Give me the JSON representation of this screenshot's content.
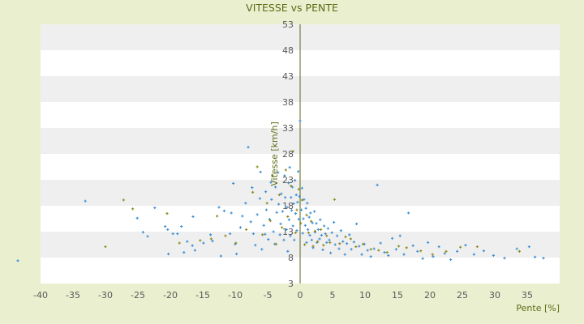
{
  "chart_data": {
    "type": "scatter",
    "title": "VITESSE vs PENTE",
    "xlabel": "Pente [%]",
    "ylabel": "Vitesse [km/h]",
    "xlim": [
      -40,
      40
    ],
    "ylim": [
      3,
      53
    ],
    "xticks": [
      "-40",
      "-35",
      "-30",
      "-25",
      "-20",
      "-15",
      "-10",
      "-5",
      "0",
      "5",
      "10",
      "15",
      "20",
      "25",
      "30",
      "35"
    ],
    "yticks": [
      "3",
      "8",
      "13",
      "18",
      "23",
      "28",
      "33",
      "38",
      "43",
      "48",
      "53"
    ],
    "grid": "horizontal alternating bands",
    "legend": "none",
    "colors": {
      "background": "#eaf0cf",
      "band_light": "#ffffff",
      "band_dark": "#efefef",
      "axis": "#5c6a14",
      "series_a": "#3d8fd4",
      "series_b": "#8c8a1e"
    },
    "series": [
      {
        "color_key": "series_a",
        "points": [
          [
            -43.5,
            7.4
          ],
          [
            -33.1,
            18.9
          ],
          [
            -25.1,
            15.6
          ],
          [
            -24.2,
            12.9
          ],
          [
            -23.5,
            12.1
          ],
          [
            -22.4,
            17.6
          ],
          [
            -20.8,
            14
          ],
          [
            -20.4,
            13.4
          ],
          [
            -20.3,
            8.7
          ],
          [
            -19.6,
            12.6
          ],
          [
            -18.9,
            12.6
          ],
          [
            -18.3,
            14
          ],
          [
            -17.9,
            9
          ],
          [
            -17.4,
            11.1
          ],
          [
            -16.6,
            10.3
          ],
          [
            -16.5,
            15.9
          ],
          [
            -16.2,
            9.4
          ],
          [
            -14.9,
            10.8
          ],
          [
            -13.8,
            12.4
          ],
          [
            -13.5,
            11.2
          ],
          [
            -12.5,
            17.7
          ],
          [
            -12.2,
            8.3
          ],
          [
            -11.7,
            17
          ],
          [
            -10.8,
            12.6
          ],
          [
            -10.6,
            16.6
          ],
          [
            -10.3,
            22.3
          ],
          [
            -10,
            10.6
          ],
          [
            -9.8,
            8.7
          ],
          [
            -9.2,
            13.8
          ],
          [
            -8.9,
            16
          ],
          [
            -8.4,
            18.5
          ],
          [
            -8,
            29.3
          ],
          [
            -7.6,
            14.9
          ],
          [
            -7.4,
            21.5
          ],
          [
            -7.2,
            12.6
          ],
          [
            -6.9,
            10.4
          ],
          [
            -6.6,
            16.3
          ],
          [
            -6.2,
            19.4
          ],
          [
            -6.1,
            24.5
          ],
          [
            -5.9,
            9.6
          ],
          [
            -5.6,
            14.2
          ],
          [
            -5.4,
            12.5
          ],
          [
            -5.3,
            20.7
          ],
          [
            -5.2,
            17.2
          ],
          [
            -4.9,
            11.5
          ],
          [
            -4.7,
            15.4
          ],
          [
            -4.5,
            22.5
          ],
          [
            -4.4,
            19.2
          ],
          [
            -4.1,
            13
          ],
          [
            -3.9,
            10.6
          ],
          [
            -3.8,
            21.6
          ],
          [
            -3.6,
            16.7
          ],
          [
            -3.4,
            24.4
          ],
          [
            -3.3,
            18.3
          ],
          [
            -3.1,
            12.4
          ],
          [
            -3,
            14.5
          ],
          [
            -2.9,
            20.3
          ],
          [
            -2.7,
            16.9
          ],
          [
            -2.5,
            11.4
          ],
          [
            -2.4,
            23.8
          ],
          [
            -2.3,
            19.6
          ],
          [
            -2.1,
            13.4
          ],
          [
            -2,
            17.7
          ],
          [
            -1.9,
            9.2
          ],
          [
            -1.8,
            22.4
          ],
          [
            -1.7,
            15.3
          ],
          [
            -1.6,
            25.4
          ],
          [
            -1.5,
            12.2
          ],
          [
            -1.4,
            19.6
          ],
          [
            -1.3,
            17.1
          ],
          [
            -1.2,
            21.6
          ],
          [
            -1.1,
            14.1
          ],
          [
            -1,
            18.4
          ],
          [
            -0.9,
            11.4
          ],
          [
            -0.8,
            22.9
          ],
          [
            -0.7,
            16.5
          ],
          [
            -0.6,
            20.1
          ],
          [
            -0.5,
            13.2
          ],
          [
            -0.4,
            18.7
          ],
          [
            -0.3,
            24.6
          ],
          [
            -0.2,
            15.4
          ],
          [
            -0.1,
            19.8
          ],
          [
            0,
            34.4
          ],
          [
            0.2,
            17.2
          ],
          [
            0.3,
            21.4
          ],
          [
            0.4,
            12.7
          ],
          [
            0.5,
            15.5
          ],
          [
            0.6,
            19.2
          ],
          [
            0.8,
            14.2
          ],
          [
            0.9,
            17.5
          ],
          [
            1,
            10.9
          ],
          [
            1.1,
            18.5
          ],
          [
            1.2,
            13.4
          ],
          [
            1.4,
            15.8
          ],
          [
            1.5,
            12.3
          ],
          [
            1.6,
            16.6
          ],
          [
            1.8,
            11.4
          ],
          [
            1.9,
            14.7
          ],
          [
            2,
            9.9
          ],
          [
            2.2,
            16.9
          ],
          [
            2.3,
            12.9
          ],
          [
            2.5,
            14.6
          ],
          [
            2.6,
            10.9
          ],
          [
            2.8,
            13.4
          ],
          [
            3,
            11.6
          ],
          [
            3.1,
            15.3
          ],
          [
            3.3,
            12.3
          ],
          [
            3.5,
            9.5
          ],
          [
            3.7,
            14.1
          ],
          [
            3.9,
            12.6
          ],
          [
            4.1,
            10.9
          ],
          [
            4.3,
            13.6
          ],
          [
            4.5,
            11.4
          ],
          [
            4.7,
            8.9
          ],
          [
            4.9,
            12.8
          ],
          [
            5.2,
            14.8
          ],
          [
            5.4,
            10.5
          ],
          [
            5.7,
            12.2
          ],
          [
            6,
            9.7
          ],
          [
            6.3,
            13.2
          ],
          [
            6.6,
            11.1
          ],
          [
            6.9,
            8.6
          ],
          [
            7.2,
            10.7
          ],
          [
            7.6,
            12.4
          ],
          [
            7.9,
            9.6
          ],
          [
            8.3,
            11
          ],
          [
            8.7,
            14.5
          ],
          [
            9.1,
            10.2
          ],
          [
            9.5,
            8.6
          ],
          [
            9.9,
            10.6
          ],
          [
            10.4,
            9.4
          ],
          [
            10.9,
            8.2
          ],
          [
            11.4,
            9.7
          ],
          [
            11.9,
            22
          ],
          [
            12.4,
            10.8
          ],
          [
            13,
            9
          ],
          [
            13.6,
            8.4
          ],
          [
            14.2,
            11.7
          ],
          [
            14.8,
            9.6
          ],
          [
            15.4,
            12.2
          ],
          [
            16,
            8.6
          ],
          [
            16.7,
            16.6
          ],
          [
            17.4,
            10.3
          ],
          [
            18.1,
            9.2
          ],
          [
            18.9,
            7.8
          ],
          [
            19.7,
            10.9
          ],
          [
            20.5,
            8.2
          ],
          [
            21.4,
            10.1
          ],
          [
            22.3,
            8.8
          ],
          [
            23.2,
            7.6
          ],
          [
            24.2,
            9.2
          ],
          [
            25.5,
            10.4
          ],
          [
            26.8,
            8.6
          ],
          [
            28.3,
            9.3
          ],
          [
            29.8,
            8.4
          ],
          [
            31.5,
            7.9
          ],
          [
            33.4,
            9.7
          ],
          [
            35.3,
            10.1
          ],
          [
            36.2,
            8.1
          ],
          [
            37.5,
            7.9
          ]
        ]
      },
      {
        "color_key": "series_b",
        "points": [
          [
            -30,
            10.1
          ],
          [
            -27.2,
            19.1
          ],
          [
            -25.8,
            17.4
          ],
          [
            -20.5,
            16.5
          ],
          [
            -18.6,
            10.8
          ],
          [
            -15.4,
            11.3
          ],
          [
            -13.7,
            11.6
          ],
          [
            -12.8,
            16
          ],
          [
            -11.5,
            12.2
          ],
          [
            -9.9,
            10.8
          ],
          [
            -8.3,
            13.4
          ],
          [
            -7.3,
            20.6
          ],
          [
            -6.6,
            25.5
          ],
          [
            -5.8,
            12.4
          ],
          [
            -5.1,
            18.5
          ],
          [
            -4.6,
            15.1
          ],
          [
            -4.3,
            23.9
          ],
          [
            -3.7,
            10.6
          ],
          [
            -3.2,
            20.1
          ],
          [
            -2.8,
            13.8
          ],
          [
            -2.2,
            24.9
          ],
          [
            -1.9,
            15.9
          ],
          [
            -1.4,
            21.8
          ],
          [
            -1.1,
            28.5
          ],
          [
            -0.7,
            12.8
          ],
          [
            -0.5,
            17.2
          ],
          [
            -0.2,
            21.2
          ],
          [
            0.1,
            14.6
          ],
          [
            0.3,
            19.1
          ],
          [
            0.7,
            10.5
          ],
          [
            1,
            16.2
          ],
          [
            1.3,
            12.8
          ],
          [
            1.7,
            15
          ],
          [
            2,
            10.2
          ],
          [
            2.3,
            13.1
          ],
          [
            2.7,
            11.1
          ],
          [
            3.2,
            13.4
          ],
          [
            3.6,
            10.4
          ],
          [
            4.1,
            12.2
          ],
          [
            4.6,
            10.9
          ],
          [
            5.3,
            19.2
          ],
          [
            6.1,
            10.7
          ],
          [
            7,
            12
          ],
          [
            7.8,
            11.6
          ],
          [
            8.6,
            10.1
          ],
          [
            9.7,
            10.6
          ],
          [
            10.9,
            9.6
          ],
          [
            12.1,
            9.4
          ],
          [
            13.4,
            9
          ],
          [
            15.2,
            10.2
          ],
          [
            16.4,
            9.9
          ],
          [
            18.6,
            9.3
          ],
          [
            20.4,
            8.6
          ],
          [
            22.5,
            9.2
          ],
          [
            24.7,
            10
          ],
          [
            27.3,
            10.1
          ],
          [
            33.8,
            9.2
          ]
        ]
      }
    ]
  }
}
